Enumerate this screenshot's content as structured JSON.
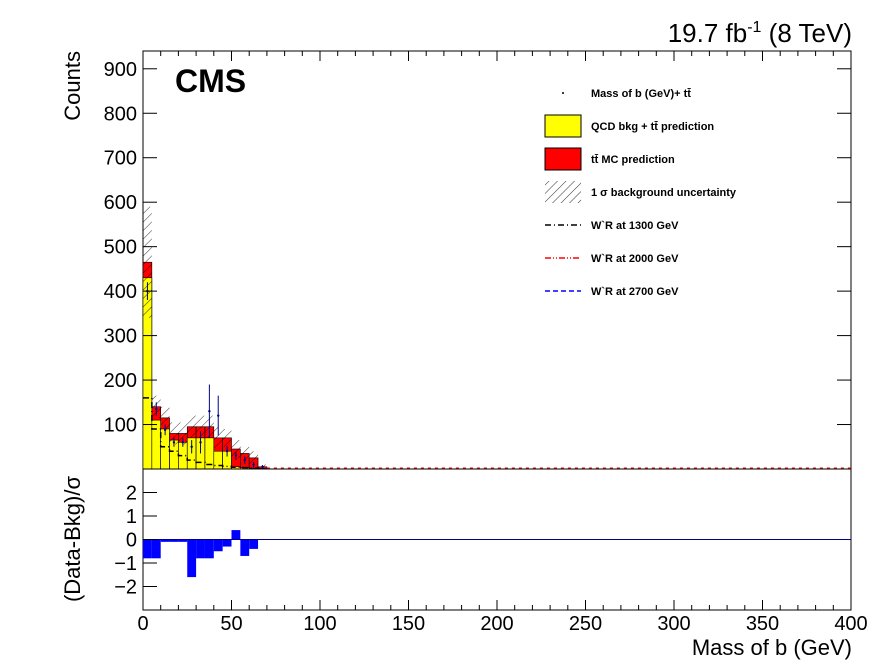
{
  "lumi_label": {
    "main": "19.7 fb",
    "sup": "-1",
    "tail": " (8 TeV)"
  },
  "experiment": "CMS",
  "colors": {
    "qcd": "#ffff00",
    "ttbar": "#ff0000",
    "data": "#00008b",
    "ratio": "#0000ff",
    "wr1300": "#000000",
    "wr2000": "#ff0000",
    "wr2700": "#0000ff"
  },
  "chart_data": [
    {
      "type": "histogram",
      "ylabel": "Counts",
      "xlim": [
        0,
        400
      ],
      "ylim": [
        0,
        940
      ],
      "yticks": [
        100,
        200,
        300,
        400,
        500,
        600,
        700,
        800,
        900
      ],
      "bin_width": 5,
      "bins_low_edge": [
        0,
        5,
        10,
        15,
        20,
        25,
        30,
        35,
        40,
        45,
        50,
        55,
        60,
        65
      ],
      "qcd": [
        430,
        110,
        90,
        65,
        60,
        70,
        70,
        70,
        40,
        40,
        5,
        3,
        2,
        1
      ],
      "ttbar_stacked": [
        465,
        140,
        115,
        80,
        80,
        95,
        95,
        95,
        70,
        70,
        45,
        35,
        25,
        5
      ],
      "uncertainty_upper": [
        590,
        165,
        140,
        105,
        105,
        120,
        120,
        120,
        95,
        90,
        65,
        50,
        40,
        10
      ],
      "data": [
        400,
        135,
        88,
        60,
        60,
        50,
        60,
        130,
        120,
        40,
        30,
        20,
        10,
        5
      ],
      "data_errors": [
        20,
        15,
        12,
        10,
        10,
        15,
        25,
        60,
        45,
        12,
        10,
        8,
        6,
        4
      ],
      "wr_1300": [
        160,
        90,
        50,
        40,
        30,
        20,
        15,
        10,
        8,
        6,
        4,
        3,
        2,
        1
      ],
      "legend": [
        {
          "label": "Mass of b (GeV)+ tt̄",
          "style": "marker"
        },
        {
          "label": "QCD bkg + tt̄ prediction",
          "style": "fill-yellow"
        },
        {
          "label": "tt̄ MC prediction",
          "style": "fill-red"
        },
        {
          "label": "1 σ background uncertainty",
          "style": "hatch"
        },
        {
          "label": "W`R at 1300 GeV",
          "style": "dashdot-black"
        },
        {
          "label": "W`R at 2000 GeV",
          "style": "dashdotdot-red"
        },
        {
          "label": "W`R at 2700 GeV",
          "style": "dashed-blue"
        }
      ],
      "legend_placement": "top-right"
    },
    {
      "type": "bar",
      "ylabel": "(Data-Bkg)/σ",
      "xlabel": "Mass of b (GeV)",
      "xlim": [
        0,
        400
      ],
      "ylim": [
        -3,
        3
      ],
      "yticks": [
        "2",
        "1",
        "0",
        "−1",
        "−2"
      ],
      "xticks": [
        "0",
        "50",
        "100",
        "150",
        "200",
        "250",
        "300",
        "350",
        "400"
      ],
      "bin_width": 5,
      "bins_low_edge": [
        0,
        5,
        10,
        15,
        20,
        25,
        30,
        35,
        40,
        45,
        50,
        55,
        60,
        65
      ],
      "values": [
        -0.8,
        -0.8,
        -0.1,
        -0.1,
        -0.1,
        -1.6,
        -0.8,
        -0.8,
        -0.5,
        -0.3,
        0.4,
        -0.7,
        -0.4,
        0
      ]
    }
  ]
}
